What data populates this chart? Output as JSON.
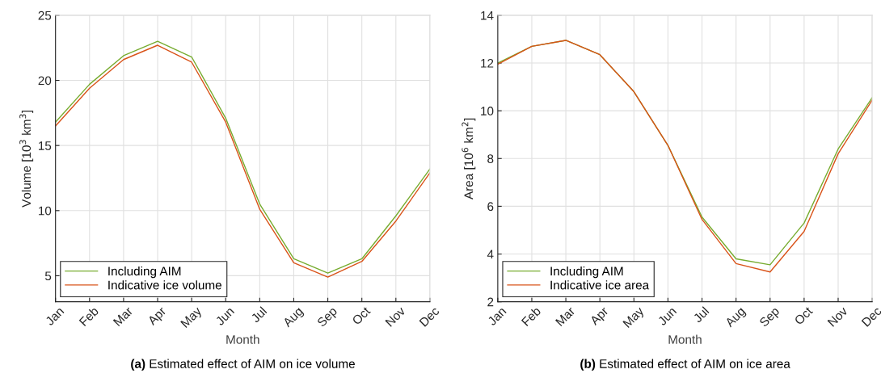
{
  "chart_data": [
    {
      "type": "line",
      "xlabel": "Month",
      "ylabel": "Volume [10$^{3}$ km$^{3}$]",
      "categories": [
        "Jan",
        "Feb",
        "Mar",
        "Apr",
        "May",
        "Jun",
        "Jul",
        "Aug",
        "Sep",
        "Oct",
        "Nov",
        "Dec"
      ],
      "series": [
        {
          "name": "Including AIM",
          "color": "#77ac30",
          "values": [
            16.8,
            19.7,
            21.9,
            23.0,
            21.8,
            17.1,
            10.5,
            6.3,
            5.2,
            6.3,
            9.6,
            13.2
          ]
        },
        {
          "name": "Indicative ice volume",
          "color": "#d95319",
          "values": [
            16.5,
            19.4,
            21.6,
            22.7,
            21.4,
            16.8,
            10.1,
            6.0,
            4.9,
            6.1,
            9.2,
            12.9
          ]
        }
      ],
      "ylim": [
        3,
        25
      ],
      "yticks": [
        5,
        10,
        15,
        20,
        25
      ],
      "grid": true,
      "legend": "bottom left",
      "annotations": [
        "(a) Estimated effect of AIM on ice volume"
      ]
    },
    {
      "type": "line",
      "xlabel": "Month",
      "ylabel": "Area [10$^{6}$ km$^{2}$]",
      "categories": [
        "Jan",
        "Feb",
        "Mar",
        "Apr",
        "May",
        "Jun",
        "Jul",
        "Aug",
        "Sep",
        "Oct",
        "Nov",
        "Dec"
      ],
      "series": [
        {
          "name": "Including AIM",
          "color": "#77ac30",
          "values": [
            12.0,
            12.7,
            12.95,
            12.35,
            10.8,
            8.55,
            5.55,
            3.8,
            3.55,
            5.3,
            8.4,
            10.55
          ]
        },
        {
          "name": "Indicative ice area",
          "color": "#d95319",
          "values": [
            11.95,
            12.7,
            12.95,
            12.35,
            10.8,
            8.55,
            5.45,
            3.6,
            3.25,
            4.95,
            8.2,
            10.45
          ]
        }
      ],
      "ylim": [
        2,
        14
      ],
      "yticks": [
        2,
        4,
        6,
        8,
        10,
        12,
        14
      ],
      "grid": true,
      "legend": "bottom left",
      "annotations": [
        "(b) Estimated effect of AIM on ice area"
      ]
    }
  ]
}
